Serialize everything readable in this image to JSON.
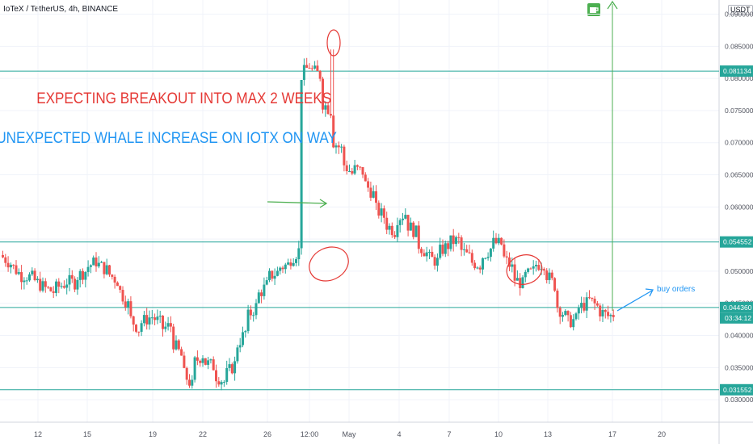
{
  "header": {
    "symbol": "IoTeX / TetherUS, 4h, BINANCE",
    "currency": "USDT",
    "icon": "coffee-cup-icon"
  },
  "chart_data": {
    "type": "candlestick",
    "title": "IoTeX / TetherUS, 4h, BINANCE",
    "y_axis": {
      "ylim": [
        0.0265,
        0.0922
      ],
      "ticks": [
        "0.030000",
        "0.035000",
        "0.040000",
        "0.045000",
        "0.050000",
        "0.055000",
        "0.060000",
        "0.065000",
        "0.070000",
        "0.075000",
        "0.080000",
        "0.085000",
        "0.090000"
      ],
      "position": "right"
    },
    "x_axis": {
      "ticks": [
        "12",
        "15",
        "19",
        "22",
        "26",
        "12:00",
        "May",
        "4",
        "7",
        "10",
        "13",
        "17",
        "20"
      ]
    },
    "price_path": [
      [
        0.0525,
        0.0512
      ],
      [
        0.051,
        0.0493
      ],
      [
        0.0495,
        0.049
      ],
      [
        0.0488,
        0.0476
      ],
      [
        0.0475,
        0.0468
      ],
      [
        0.0472,
        0.048
      ],
      [
        0.0485,
        0.0482
      ],
      [
        0.049,
        0.05
      ],
      [
        0.0505,
        0.0515
      ],
      [
        0.0512,
        0.0502
      ],
      [
        0.0498,
        0.0485
      ],
      [
        0.0475,
        0.0448
      ],
      [
        0.043,
        0.041
      ],
      [
        0.0418,
        0.0428
      ],
      [
        0.0432,
        0.042
      ],
      [
        0.041,
        0.0415
      ],
      [
        0.0395,
        0.0368
      ],
      [
        0.0345,
        0.0322
      ],
      [
        0.0355,
        0.037
      ],
      [
        0.036,
        0.0352
      ],
      [
        0.034,
        0.0328
      ],
      [
        0.0336,
        0.0355
      ],
      [
        0.038,
        0.0405
      ],
      [
        0.0425,
        0.0445
      ],
      [
        0.046,
        0.0478
      ],
      [
        0.049,
        0.0498
      ],
      [
        0.0505,
        0.051
      ],
      [
        0.0515,
        0.0532
      ],
      [
        0.08,
        0.082
      ],
      [
        0.0815,
        0.0805
      ],
      [
        0.0765,
        0.075
      ],
      [
        0.0705,
        0.069
      ],
      [
        0.067,
        0.0652
      ],
      [
        0.066,
        0.0655
      ],
      [
        0.064,
        0.062
      ],
      [
        0.06,
        0.0585
      ],
      [
        0.0575,
        0.0562
      ],
      [
        0.058,
        0.059
      ],
      [
        0.0575,
        0.056
      ],
      [
        0.0545,
        0.0528
      ],
      [
        0.0522,
        0.0515
      ],
      [
        0.0528,
        0.054
      ],
      [
        0.0545,
        0.0548
      ],
      [
        0.0535,
        0.0522
      ],
      [
        0.0515,
        0.051
      ],
      [
        0.052,
        0.0535
      ],
      [
        0.0545,
        0.0542
      ],
      [
        0.0525,
        0.0505
      ],
      [
        0.049,
        0.048
      ],
      [
        0.049,
        0.05
      ],
      [
        0.051,
        0.0512
      ],
      [
        0.05,
        0.0478
      ],
      [
        0.045,
        0.043
      ],
      [
        0.042,
        0.0425
      ],
      [
        0.044,
        0.045
      ],
      [
        0.0458,
        0.0445
      ],
      [
        0.044,
        0.043
      ],
      [
        0.0428,
        0.0438
      ],
      [
        0.0446,
        0.0452
      ],
      [
        0.047,
        0.0445
      ],
      [
        0.044,
        0.0442
      ],
      [
        0.0443,
        0.0444
      ]
    ],
    "horizontal_lines": [
      {
        "price": 0.081134,
        "label": "0.081134",
        "color": "#26a69a"
      },
      {
        "price": 0.054552,
        "label": "0.054552",
        "color": "#26a69a"
      },
      {
        "price": 0.04436,
        "label": "0.044360",
        "color": "#26a69a"
      },
      {
        "price": 0.031552,
        "label": "0.031552",
        "color": "#26a69a"
      }
    ],
    "countdown": "03:34:12",
    "annotations": [
      {
        "text": "EXPECTING BREAKOUT INTO MAX 2 WEEKS",
        "color": "#e53935"
      },
      {
        "text": "UNEXPECTED WHALE INCREASE ON IOTX ON WAY",
        "color": "#2196f3"
      },
      {
        "text": "buy orders",
        "color": "#2196f3"
      }
    ],
    "colors": {
      "up": "#26a69a",
      "down": "#ef5350",
      "grid": "#f0f3fa",
      "accent_green": "#4caf50",
      "circle_red": "#e53935",
      "arrow_blue": "#2196f3"
    },
    "grid": true
  }
}
